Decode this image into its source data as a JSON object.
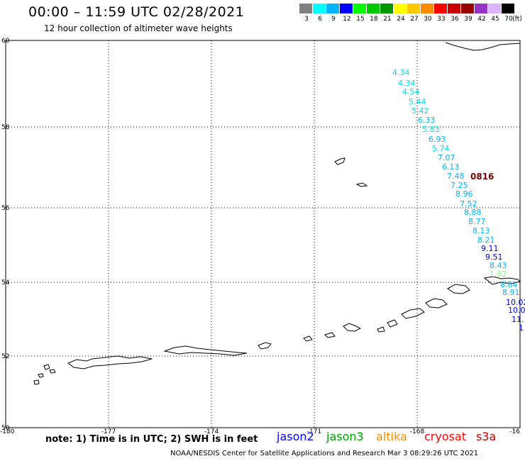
{
  "title": "00:00 – 11:59 UTC 02/28/2021",
  "subtitle": "12 hour collection of altimeter wave heights",
  "colorbar": {
    "unit": "(ft)",
    "bins": [
      {
        "label": "3",
        "color": "#808080"
      },
      {
        "label": "6",
        "color": "#00ffff"
      },
      {
        "label": "9",
        "color": "#00b4ff"
      },
      {
        "label": "12",
        "color": "#0000ff"
      },
      {
        "label": "15",
        "color": "#00ff00"
      },
      {
        "label": "18",
        "color": "#00c800"
      },
      {
        "label": "21",
        "color": "#009600"
      },
      {
        "label": "24",
        "color": "#ffff00"
      },
      {
        "label": "27",
        "color": "#ffc800"
      },
      {
        "label": "30",
        "color": "#ff8c00"
      },
      {
        "label": "33",
        "color": "#ff0000"
      },
      {
        "label": "36",
        "color": "#c80000"
      },
      {
        "label": "39",
        "color": "#960000"
      },
      {
        "label": "42",
        "color": "#9632c8"
      },
      {
        "label": "45",
        "color": "#dcb4ff"
      },
      {
        "label": "70",
        "color": "#000000"
      }
    ]
  },
  "axes": {
    "lat_labels": [
      "60",
      "58",
      "56",
      "54",
      "52",
      "50"
    ],
    "lon_labels": [
      "-180",
      "-177",
      "-174",
      "-171",
      "-168",
      "-16"
    ]
  },
  "track_points": [
    {
      "v": "4.34",
      "c": "#00e0e0"
    },
    {
      "v": "4.34",
      "c": "#00e0e0"
    },
    {
      "v": "4.54",
      "c": "#00e0e0"
    },
    {
      "v": "5.44",
      "c": "#00e0e0"
    },
    {
      "v": "5.42",
      "c": "#00e0e0"
    },
    {
      "v": "6.33",
      "c": "#00b4ff"
    },
    {
      "v": "5.83",
      "c": "#00e0e0"
    },
    {
      "v": "6.93",
      "c": "#00b4ff"
    },
    {
      "v": "5.74",
      "c": "#00e0e0"
    },
    {
      "v": "7.07",
      "c": "#00b4ff"
    },
    {
      "v": "6.13",
      "c": "#00b4ff"
    },
    {
      "v": "7.48",
      "c": "#00b4ff"
    },
    {
      "v": "7.25",
      "c": "#00b4ff"
    },
    {
      "v": "8.96",
      "c": "#00b4ff"
    },
    {
      "v": "7.52",
      "c": "#00b4ff"
    },
    {
      "v": "8.88",
      "c": "#00b4ff"
    },
    {
      "v": "8.77",
      "c": "#00b4ff"
    },
    {
      "v": "8.13",
      "c": "#00b4ff"
    },
    {
      "v": "8.21",
      "c": "#00b4ff"
    },
    {
      "v": "9.11",
      "c": "#0000d0"
    },
    {
      "v": "9.51",
      "c": "#0000d0"
    },
    {
      "v": "8.43",
      "c": "#00b4ff"
    },
    {
      "v": "1.82",
      "c": "#80ff80"
    },
    {
      "v": "8.84",
      "c": "#00b4ff"
    },
    {
      "v": "8.91",
      "c": "#00b4ff"
    },
    {
      "v": "10.02",
      "c": "#0000ff"
    },
    {
      "v": "10.0",
      "c": "#0000ff"
    },
    {
      "v": "11.",
      "c": "#0000ff"
    },
    {
      "v": "1",
      "c": "#0000ff"
    }
  ],
  "time_stamp": "0816",
  "note": "note: 1) Time is in UTC; 2) SWH is in feet",
  "satellites": [
    {
      "name": "jason2",
      "color": "#0000ff"
    },
    {
      "name": "jason3",
      "color": "#00a000"
    },
    {
      "name": "altika",
      "color": "#ff8c00"
    },
    {
      "name": "cryosat",
      "color": "#ff0000"
    },
    {
      "name": "s3a",
      "color": "#c80000"
    }
  ],
  "footer": "NOAA/NESDIS Center for Satellite Applications and Research    Mar  3 08:29:26 UTC 2021"
}
